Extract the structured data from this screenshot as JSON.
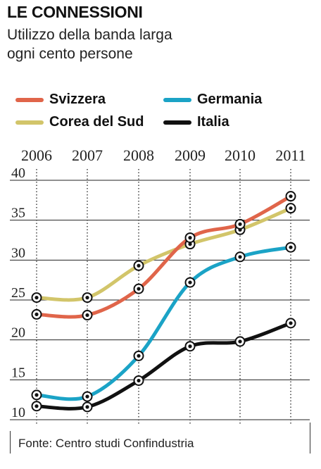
{
  "header": {
    "title": "LE CONNESSIONI",
    "subtitle_line1": "Utilizzo della banda larga",
    "subtitle_line2": "ogni cento persone"
  },
  "source": "Fonte: Centro studi Confindustria",
  "colors": {
    "Svizzera": "#e0654a",
    "Germania": "#1ba3c6",
    "Corea del Sud": "#d2c56a",
    "Italia": "#111111"
  },
  "chart_data": {
    "type": "line",
    "x": [
      "2006",
      "2007",
      "2008",
      "2009",
      "2010",
      "2011"
    ],
    "ylim": [
      10,
      40
    ],
    "yticks": [
      10,
      15,
      20,
      25,
      30,
      35,
      40
    ],
    "grid": true,
    "legend_position": "top",
    "series": [
      {
        "name": "Svizzera",
        "values": [
          23.2,
          23.1,
          26.4,
          32.8,
          34.5,
          38.0
        ]
      },
      {
        "name": "Germania",
        "values": [
          13.1,
          12.9,
          18.0,
          27.2,
          30.4,
          31.6
        ]
      },
      {
        "name": "Corea del Sud",
        "values": [
          25.3,
          25.3,
          29.3,
          32.0,
          33.8,
          36.5
        ]
      },
      {
        "name": "Italia",
        "values": [
          11.7,
          11.6,
          14.9,
          19.2,
          19.8,
          22.1
        ]
      }
    ]
  }
}
